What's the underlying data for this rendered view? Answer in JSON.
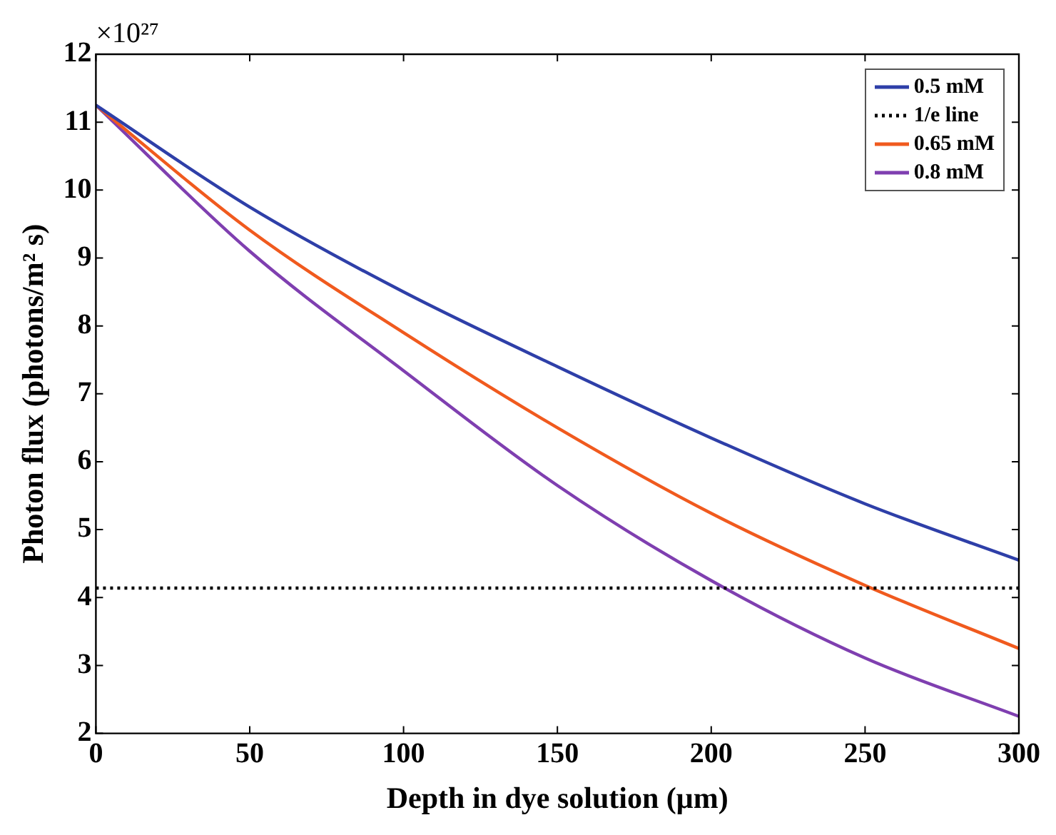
{
  "chart_data": {
    "type": "line",
    "xlabel": "Depth in dye solution (μm)",
    "ylabel": "Photon flux (photons/m² s)",
    "annotations": [
      "×10²⁷"
    ],
    "x": [
      0,
      50,
      100,
      150,
      200,
      250,
      300
    ],
    "series": [
      {
        "name": "0.5 mM",
        "color": "#2e3fa8",
        "values": [
          11.25,
          9.75,
          8.5,
          7.4,
          6.35,
          5.38,
          4.55
        ]
      },
      {
        "name": "1/e line",
        "color": "#000000",
        "x": [
          0,
          300
        ],
        "values": [
          4.14,
          4.14
        ],
        "line_style": "dotted"
      },
      {
        "name": "0.65 mM",
        "color": "#f05a1e",
        "values": [
          11.25,
          9.41,
          7.9,
          6.5,
          5.24,
          4.18,
          3.25
        ]
      },
      {
        "name": "0.8 mM",
        "color": "#7f3fb0",
        "values": [
          11.25,
          9.1,
          7.34,
          5.65,
          4.25,
          3.11,
          2.25
        ]
      }
    ],
    "xlim": [
      0,
      300
    ],
    "xticks": [
      0,
      50,
      100,
      150,
      200,
      250,
      300
    ],
    "ylim": [
      2,
      12
    ],
    "yticks": [
      2,
      3,
      4,
      5,
      6,
      7,
      8,
      9,
      10,
      11,
      12
    ],
    "grid": false,
    "legend": "top right",
    "marker": "none",
    "line_style": "solid"
  }
}
